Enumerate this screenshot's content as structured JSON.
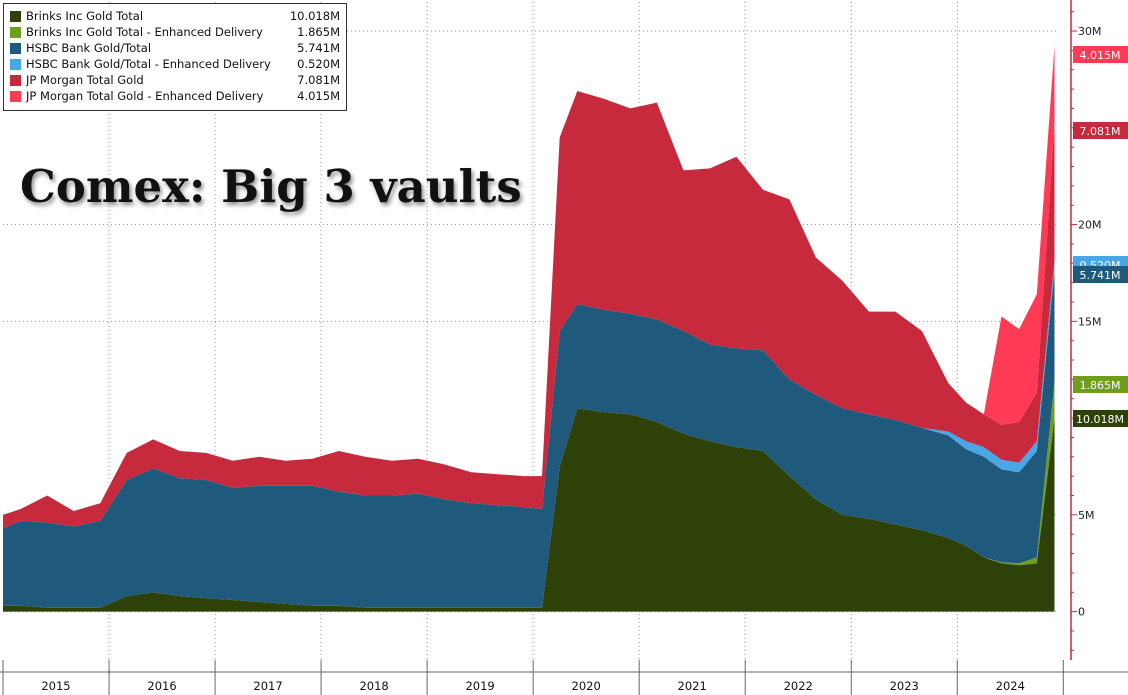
{
  "chart_data": {
    "type": "area",
    "stacked": true,
    "title": "Comex: Big 3 vaults",
    "xlabel": "",
    "ylabel": "",
    "x_tick_labels": [
      "2015",
      "2016",
      "2017",
      "2018",
      "2019",
      "2020",
      "2021",
      "2022",
      "2023",
      "2024"
    ],
    "y_tick_labels": [
      "0",
      "5M",
      "15M",
      "20M",
      "30M"
    ],
    "ylim": [
      -2.5,
      31.5
    ],
    "y_axis_position": "right",
    "grid": true,
    "legend_position": "top-left",
    "x": [
      "2015-01",
      "2015-03",
      "2015-06",
      "2015-09",
      "2015-12",
      "2016-03",
      "2016-06",
      "2016-09",
      "2016-12",
      "2017-03",
      "2017-06",
      "2017-09",
      "2017-12",
      "2018-03",
      "2018-06",
      "2018-09",
      "2018-12",
      "2019-03",
      "2019-06",
      "2019-09",
      "2019-12",
      "2020-02",
      "2020-04",
      "2020-06",
      "2020-09",
      "2020-12",
      "2021-03",
      "2021-06",
      "2021-09",
      "2021-12",
      "2022-03",
      "2022-06",
      "2022-09",
      "2022-12",
      "2023-03",
      "2023-06",
      "2023-09",
      "2023-12",
      "2024-02",
      "2024-04",
      "2024-06",
      "2024-08",
      "2024-10",
      "2024-12"
    ],
    "series": [
      {
        "name": "Brinks Inc Gold Total",
        "color": "#2e4108",
        "last_value_label": "10.018M",
        "values": [
          0.3,
          0.3,
          0.2,
          0.2,
          0.2,
          0.8,
          1.0,
          0.8,
          0.7,
          0.6,
          0.5,
          0.4,
          0.3,
          0.3,
          0.2,
          0.2,
          0.2,
          0.2,
          0.2,
          0.2,
          0.2,
          0.2,
          7.5,
          10.5,
          10.3,
          10.2,
          9.8,
          9.2,
          8.8,
          8.5,
          8.3,
          7.0,
          5.8,
          5.0,
          4.8,
          4.5,
          4.2,
          3.8,
          3.4,
          2.8,
          2.5,
          2.4,
          2.5,
          10.018
        ]
      },
      {
        "name": "Brinks Inc Gold Total - Enhanced Delivery",
        "color": "#6f9d1c",
        "last_value_label": "1.865M",
        "values": [
          0,
          0,
          0,
          0,
          0,
          0,
          0,
          0,
          0,
          0,
          0,
          0,
          0,
          0,
          0,
          0,
          0,
          0,
          0,
          0,
          0,
          0,
          0,
          0,
          0,
          0,
          0,
          0,
          0,
          0,
          0,
          0,
          0,
          0,
          0,
          0,
          0,
          0,
          0,
          0,
          0.05,
          0.1,
          0.3,
          1.865
        ]
      },
      {
        "name": "HSBC Bank Gold/Total",
        "color": "#1f5a7c",
        "last_value_label": "5.741M",
        "values": [
          4.0,
          4.4,
          4.4,
          4.2,
          4.5,
          6.0,
          6.4,
          6.1,
          6.1,
          5.8,
          6.0,
          6.1,
          6.2,
          5.9,
          5.8,
          5.8,
          5.9,
          5.6,
          5.4,
          5.3,
          5.2,
          5.1,
          7.0,
          5.4,
          5.3,
          5.2,
          5.3,
          5.3,
          5.0,
          5.1,
          5.2,
          5.0,
          5.4,
          5.5,
          5.4,
          5.4,
          5.3,
          5.3,
          5.0,
          5.2,
          4.8,
          4.7,
          5.5,
          5.741
        ]
      },
      {
        "name": "HSBC Bank Gold/Total - Enhanced Delivery",
        "color": "#4aa7e6",
        "last_value_label": "0.520M",
        "values": [
          0,
          0,
          0,
          0,
          0,
          0,
          0,
          0,
          0,
          0,
          0,
          0,
          0,
          0,
          0,
          0,
          0,
          0,
          0,
          0,
          0,
          0,
          0,
          0,
          0,
          0,
          0,
          0,
          0,
          0,
          0,
          0,
          0,
          0,
          0,
          0,
          0,
          0.2,
          0.4,
          0.5,
          0.5,
          0.5,
          0.5,
          0.52
        ]
      },
      {
        "name": "JP Morgan Total Gold",
        "color": "#c62a3c",
        "last_value_label": "7.081M",
        "values": [
          0.7,
          0.6,
          1.4,
          0.8,
          0.9,
          1.4,
          1.5,
          1.4,
          1.4,
          1.4,
          1.5,
          1.3,
          1.4,
          2.1,
          2.0,
          1.8,
          1.8,
          1.8,
          1.6,
          1.6,
          1.6,
          1.7,
          10.0,
          11.0,
          10.9,
          10.6,
          11.2,
          8.3,
          9.1,
          9.9,
          8.3,
          9.3,
          7.1,
          6.6,
          5.3,
          5.6,
          5.0,
          2.5,
          2.0,
          1.7,
          1.8,
          2.1,
          2.5,
          7.081
        ]
      },
      {
        "name": "JP Morgan Total Gold - Enhanced Delivery",
        "color": "#ff3a55",
        "last_value_label": "4.015M",
        "values": [
          0,
          0,
          0,
          0,
          0,
          0,
          0,
          0,
          0,
          0,
          0,
          0,
          0,
          0,
          0,
          0,
          0,
          0,
          0,
          0,
          0,
          0,
          0,
          0,
          0,
          0,
          0,
          0,
          0,
          0,
          0,
          0,
          0,
          0,
          0,
          0,
          0,
          0,
          0,
          0,
          5.6,
          4.8,
          5.1,
          4.015
        ]
      }
    ]
  }
}
